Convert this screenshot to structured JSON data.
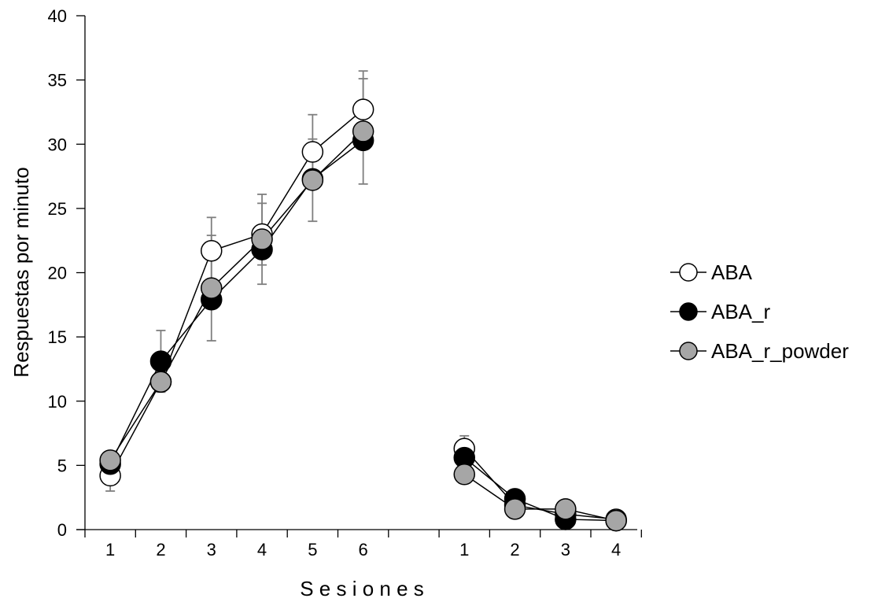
{
  "chart_data": {
    "type": "line",
    "xlabel": "S e s i o n e s",
    "ylabel": "Respuestas por minuto",
    "ylim": [
      0,
      40
    ],
    "yticks": [
      "0",
      "5",
      "10",
      "15",
      "20",
      "25",
      "30",
      "35",
      "40"
    ],
    "x_tick_labels": [
      "1",
      "2",
      "3",
      "4",
      "5",
      "6",
      "",
      "1",
      "2",
      "3",
      "4"
    ],
    "legend_position": "right",
    "grid": false,
    "series": [
      {
        "name": "ABA",
        "marker_color": "#ffffff",
        "phase1": {
          "x": [
            1,
            2,
            3,
            4,
            5,
            6
          ],
          "y": [
            4.2,
            11.5,
            21.7,
            23.0,
            29.4,
            32.7
          ],
          "err": [
            1.2,
            0,
            2.6,
            2.4,
            2.9,
            3.0
          ]
        },
        "phase2": {
          "x": [
            1,
            2,
            3,
            4
          ],
          "y": [
            6.3,
            1.9,
            1.2,
            0.8
          ],
          "err": [
            1.0,
            0,
            0,
            0
          ]
        }
      },
      {
        "name": "ABA_r",
        "marker_color": "#000000",
        "phase1": {
          "x": [
            1,
            2,
            3,
            4,
            5,
            6
          ],
          "y": [
            5.1,
            13.1,
            17.9,
            21.8,
            27.3,
            30.3
          ],
          "err": [
            0,
            2.4,
            0,
            0,
            0,
            0
          ]
        },
        "phase2": {
          "x": [
            1,
            2,
            3,
            4
          ],
          "y": [
            5.6,
            2.4,
            0.8,
            0.7
          ],
          "err": [
            0,
            0,
            0,
            0
          ]
        }
      },
      {
        "name": "ABA_r_powder",
        "marker_color": "#a6a6a6",
        "phase1": {
          "x": [
            1,
            2,
            3,
            4,
            5,
            6
          ],
          "y": [
            5.4,
            11.5,
            18.8,
            22.6,
            27.2,
            31.0
          ],
          "err": [
            0,
            0,
            4.1,
            3.5,
            3.2,
            4.1
          ]
        },
        "phase2": {
          "x": [
            1,
            2,
            3,
            4
          ],
          "y": [
            4.3,
            1.6,
            1.6,
            0.7
          ],
          "err": [
            0,
            0,
            0,
            0
          ]
        }
      }
    ]
  }
}
